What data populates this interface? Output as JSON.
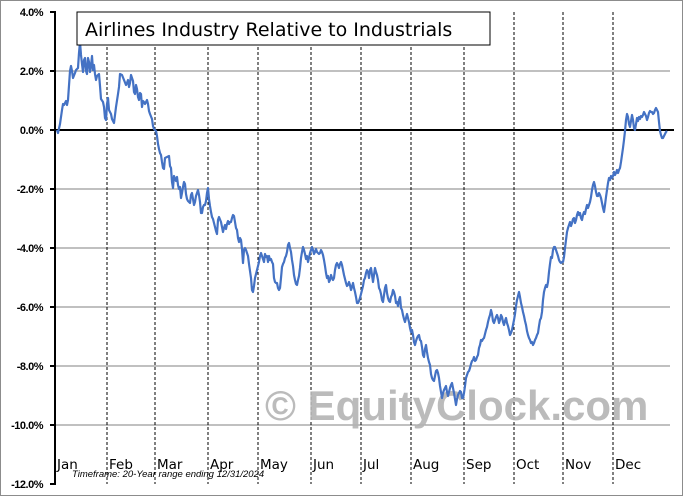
{
  "chart_data": {
    "type": "line",
    "title": "Airlines Industry Relative to Industrials",
    "subtitle": "Timeframe: 20-Year range ending 12/31/2024",
    "watermark": "© EquityClock.com",
    "xlabel": "",
    "ylabel": "",
    "ylim": [
      -12.0,
      4.0
    ],
    "yticks": [
      "4.0%",
      "2.0%",
      "0.0%",
      "-2.0%",
      "-4.0%",
      "-6.0%",
      "-8.0%",
      "-10.0%",
      "-12.0%"
    ],
    "categories": [
      "Jan",
      "Feb",
      "Mar",
      "Apr",
      "May",
      "Jun",
      "Jul",
      "Aug",
      "Sep",
      "Oct",
      "Nov",
      "Dec"
    ],
    "grid": {
      "horizontal": true,
      "vertical_dashed_month_separators": true
    },
    "legend": "none",
    "series": [
      {
        "name": "Airlines Industry Relative to Industrials",
        "color": "#4472c4",
        "x": [
          "Jan 1",
          "Jan 5",
          "Jan 10",
          "Jan 15",
          "Jan 20",
          "Jan 25",
          "Feb 1",
          "Feb 5",
          "Feb 10",
          "Feb 15",
          "Feb 20",
          "Feb 25",
          "Mar 1",
          "Mar 5",
          "Mar 10",
          "Mar 15",
          "Mar 20",
          "Mar 25",
          "Apr 1",
          "Apr 5",
          "Apr 10",
          "Apr 15",
          "Apr 20",
          "Apr 25",
          "May 1",
          "May 5",
          "May 10",
          "May 15",
          "May 20",
          "May 25",
          "Jun 1",
          "Jun 5",
          "Jun 10",
          "Jun 15",
          "Jun 20",
          "Jun 25",
          "Jul 1",
          "Jul 5",
          "Jul 10",
          "Jul 15",
          "Jul 20",
          "Jul 25",
          "Aug 1",
          "Aug 5",
          "Aug 10",
          "Aug 15",
          "Aug 20",
          "Aug 25",
          "Sep 1",
          "Sep 5",
          "Sep 10",
          "Sep 15",
          "Sep 20",
          "Sep 25",
          "Oct 1",
          "Oct 5",
          "Oct 10",
          "Oct 15",
          "Oct 20",
          "Oct 25",
          "Nov 1",
          "Nov 5",
          "Nov 10",
          "Nov 15",
          "Nov 20",
          "Nov 25",
          "Dec 1",
          "Dec 5",
          "Dec 10",
          "Dec 15",
          "Dec 20",
          "Dec 25",
          "Dec 31"
        ],
        "values": [
          0.0,
          0.8,
          2.0,
          2.9,
          2.3,
          1.3,
          0.8,
          1.9,
          1.7,
          1.3,
          1.0,
          0.0,
          -1.0,
          -1.2,
          -1.9,
          -2.3,
          -2.5,
          -2.0,
          -3.0,
          -3.3,
          -2.9,
          -4.1,
          -5.4,
          -4.3,
          -4.7,
          -4.1,
          -5.4,
          -4.0,
          -4.3,
          -4.0,
          -4.4,
          -4.0,
          -4.7,
          -5.2,
          -5.3,
          -5.0,
          -5.8,
          -5.4,
          -4.8,
          -5.8,
          -6.5,
          -6.8,
          -7.7,
          -8.1,
          -9.1,
          -8.9,
          -8.8,
          -9.3,
          -8.0,
          -7.8,
          -6.5,
          -6.6,
          -6.3,
          -7.2,
          -6.6,
          -5.5,
          -4.3,
          -3.5,
          -3.2,
          -2.9,
          -2.6,
          -1.8,
          -2.5,
          -1.9,
          -1.3,
          -1.3,
          0.4,
          0.5,
          0.3,
          0.6,
          0.7,
          -0.2,
          0.0
        ]
      }
    ]
  }
}
